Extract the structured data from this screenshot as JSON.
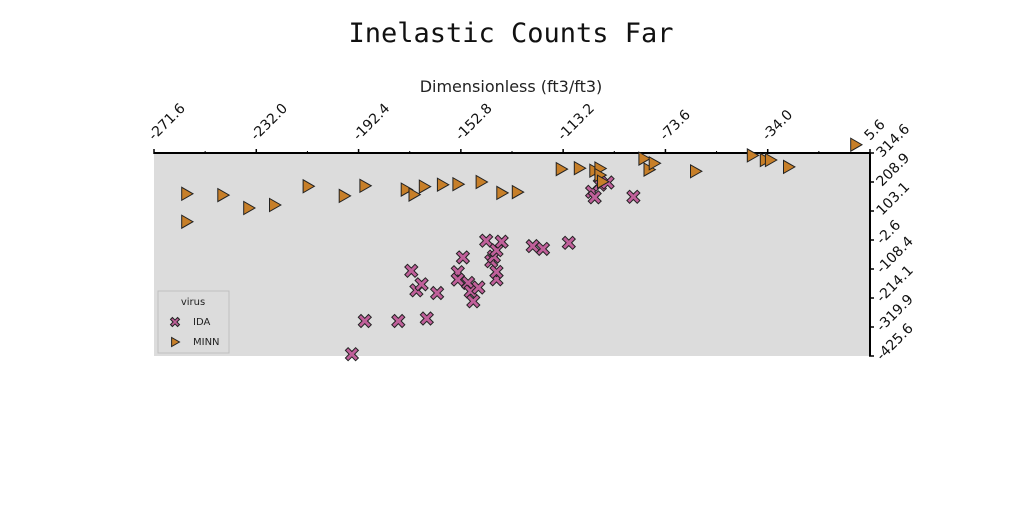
{
  "chart_data": {
    "type": "scatter",
    "title": "Inelastic Counts Far",
    "xlabel": "Dimensionless (ft3/ft3)",
    "ylabel": "",
    "xlim": [
      -271.6,
      5.6
    ],
    "ylim": [
      -425.6,
      314.6
    ],
    "x_ticks": [
      "-271.6",
      "-232.0",
      "-192.4",
      "-152.8",
      "-113.2",
      "-73.6",
      "-34.0",
      "5.6"
    ],
    "y_ticks": [
      "314.6",
      "208.9",
      "103.1",
      "-2.6",
      "-108.4",
      "-214.1",
      "-319.9",
      "-425.6"
    ],
    "x_axis_position": "top",
    "y_axis_position": "right",
    "grid": false,
    "background": "#dcdcdc",
    "legend": {
      "title": "virus",
      "position": "bottom-left",
      "entries": [
        "IDA",
        "MINN"
      ]
    },
    "series": [
      {
        "name": "IDA",
        "marker": "x-filled",
        "color": "#c0609a",
        "points": [
          [
            -195,
            -419
          ],
          [
            -190,
            -298
          ],
          [
            -177,
            -298
          ],
          [
            -172,
            -115
          ],
          [
            -170,
            -186
          ],
          [
            -168,
            -164
          ],
          [
            -166,
            -289
          ],
          [
            -162,
            -196
          ],
          [
            -154,
            -120
          ],
          [
            -154,
            -147
          ],
          [
            -152,
            -66
          ],
          [
            -150,
            -159
          ],
          [
            -149,
            -190
          ],
          [
            -148,
            -226
          ],
          [
            -146,
            -176
          ],
          [
            -143,
            -5
          ],
          [
            -141,
            -80
          ],
          [
            -140,
            -63
          ],
          [
            -139,
            -146
          ],
          [
            -139,
            -119
          ],
          [
            -139,
            -40
          ],
          [
            -137,
            -9
          ],
          [
            -125,
            -25
          ],
          [
            -121,
            -35
          ],
          [
            -111,
            -13
          ],
          [
            -102,
            173
          ],
          [
            -101,
            153
          ],
          [
            -99,
            199
          ],
          [
            -96,
            207
          ],
          [
            -86,
            155
          ]
        ]
      },
      {
        "name": "MINN",
        "marker": "triangle-right",
        "color": "#c77f29",
        "points": [
          [
            -259,
            166
          ],
          [
            -259,
            64
          ],
          [
            -245,
            161
          ],
          [
            -235,
            114
          ],
          [
            -225,
            125
          ],
          [
            -212,
            193
          ],
          [
            -198,
            158
          ],
          [
            -190,
            195
          ],
          [
            -174,
            181
          ],
          [
            -171,
            163
          ],
          [
            -167,
            192
          ],
          [
            -160,
            199
          ],
          [
            -154,
            201
          ],
          [
            -145,
            209
          ],
          [
            -137,
            169
          ],
          [
            -131,
            172
          ],
          [
            -114,
            256
          ],
          [
            -107,
            259
          ],
          [
            -101,
            250
          ],
          [
            -99,
            258
          ],
          [
            -99,
            234
          ],
          [
            -98,
            210
          ],
          [
            -82,
            294
          ],
          [
            -80,
            254
          ],
          [
            -78,
            277
          ],
          [
            -62,
            248
          ],
          [
            -40,
            306
          ],
          [
            -35,
            289
          ],
          [
            -33,
            289
          ],
          [
            -26,
            264
          ],
          [
            0,
            345
          ]
        ]
      }
    ]
  },
  "legend_colors": {
    "ida": "#c0609a",
    "minn": "#c77f29",
    "marker_edge": "#222222"
  }
}
